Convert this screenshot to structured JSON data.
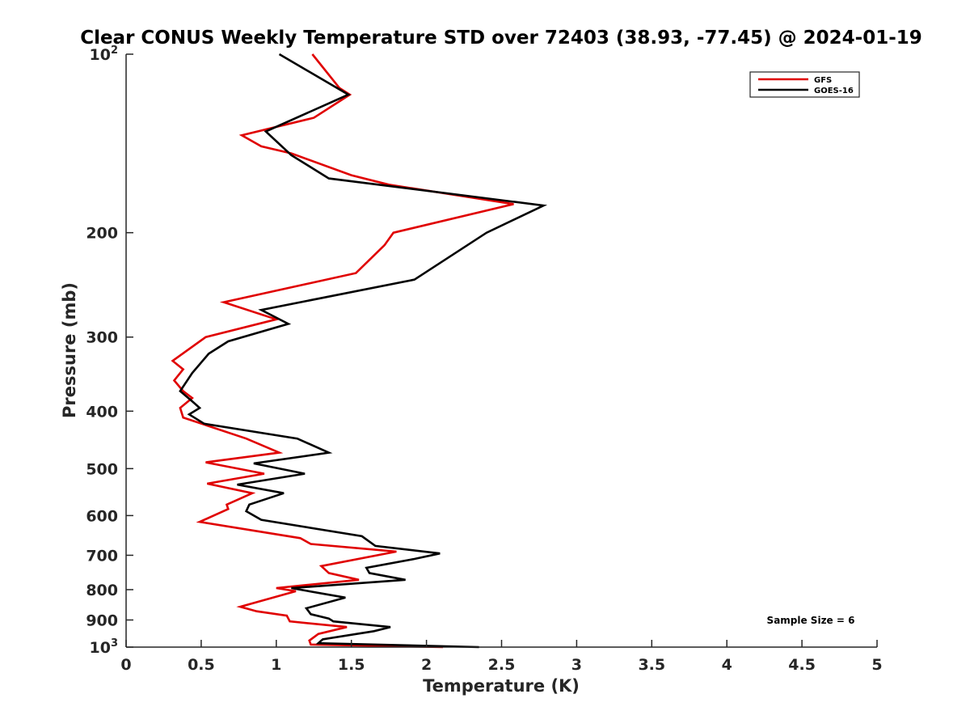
{
  "chart_data": {
    "type": "line",
    "title": "Clear CONUS Weekly Temperature STD over 72403 (38.93, -77.45) @ 2024-01-19",
    "xlabel": "Temperature (K)",
    "ylabel": "Pressure (mb)",
    "xlim": [
      0,
      5
    ],
    "ylim": [
      100,
      1000
    ],
    "y_scale": "log",
    "y_reversed": true,
    "x_ticks": [
      "0",
      "0.5",
      "1",
      "1.5",
      "2",
      "2.5",
      "3",
      "3.5",
      "4",
      "4.5",
      "5"
    ],
    "y_ticks": [
      {
        "value": 100,
        "label": "10",
        "sup": "2"
      },
      {
        "value": 200,
        "label": "200",
        "sup": ""
      },
      {
        "value": 300,
        "label": "300",
        "sup": ""
      },
      {
        "value": 400,
        "label": "400",
        "sup": ""
      },
      {
        "value": 500,
        "label": "500",
        "sup": ""
      },
      {
        "value": 600,
        "label": "600",
        "sup": ""
      },
      {
        "value": 700,
        "label": "700",
        "sup": ""
      },
      {
        "value": 800,
        "label": "800",
        "sup": ""
      },
      {
        "value": 900,
        "label": "900",
        "sup": ""
      },
      {
        "value": 1000,
        "label": "10",
        "sup": "3"
      }
    ],
    "grid": false,
    "legend_position": "top-right",
    "annotation": "Sample Size = 6",
    "series": [
      {
        "name": "GFS",
        "color": "#e00000",
        "points": [
          [
            1.24,
            100
          ],
          [
            1.42,
            114
          ],
          [
            1.49,
            117
          ],
          [
            1.25,
            128
          ],
          [
            0.77,
            137
          ],
          [
            0.9,
            143
          ],
          [
            1.1,
            147
          ],
          [
            1.5,
            160
          ],
          [
            1.75,
            166
          ],
          [
            2.58,
            179
          ],
          [
            1.78,
            200
          ],
          [
            1.72,
            210
          ],
          [
            1.53,
            234
          ],
          [
            0.65,
            262
          ],
          [
            1.0,
            280
          ],
          [
            0.53,
            300
          ],
          [
            0.31,
            329
          ],
          [
            0.38,
            340
          ],
          [
            0.32,
            355
          ],
          [
            0.38,
            370
          ],
          [
            0.44,
            380
          ],
          [
            0.36,
            395
          ],
          [
            0.38,
            410
          ],
          [
            0.8,
            445
          ],
          [
            1.02,
            470
          ],
          [
            0.53,
            488
          ],
          [
            0.92,
            510
          ],
          [
            0.54,
            530
          ],
          [
            0.84,
            550
          ],
          [
            0.67,
            575
          ],
          [
            0.68,
            585
          ],
          [
            0.49,
            615
          ],
          [
            1.16,
            655
          ],
          [
            1.23,
            670
          ],
          [
            1.8,
            690
          ],
          [
            1.3,
            730
          ],
          [
            1.35,
            750
          ],
          [
            1.55,
            770
          ],
          [
            1.0,
            795
          ],
          [
            1.13,
            805
          ],
          [
            0.76,
            855
          ],
          [
            0.87,
            870
          ],
          [
            1.07,
            885
          ],
          [
            1.09,
            905
          ],
          [
            1.47,
            925
          ],
          [
            1.28,
            950
          ],
          [
            1.22,
            975
          ],
          [
            1.23,
            990
          ],
          [
            2.11,
            1000
          ]
        ]
      },
      {
        "name": "GOES-16",
        "color": "#000000",
        "points": [
          [
            1.02,
            100
          ],
          [
            1.48,
            117
          ],
          [
            0.93,
            135
          ],
          [
            1.1,
            148
          ],
          [
            1.35,
            162
          ],
          [
            2.78,
            180
          ],
          [
            2.4,
            200
          ],
          [
            1.92,
            240
          ],
          [
            0.9,
            270
          ],
          [
            1.08,
            285
          ],
          [
            0.68,
            305
          ],
          [
            0.55,
            320
          ],
          [
            0.44,
            345
          ],
          [
            0.36,
            370
          ],
          [
            0.44,
            385
          ],
          [
            0.49,
            395
          ],
          [
            0.42,
            405
          ],
          [
            0.52,
            420
          ],
          [
            1.14,
            445
          ],
          [
            1.35,
            470
          ],
          [
            0.85,
            490
          ],
          [
            1.19,
            510
          ],
          [
            0.74,
            532
          ],
          [
            1.05,
            550
          ],
          [
            0.82,
            575
          ],
          [
            0.8,
            590
          ],
          [
            0.9,
            610
          ],
          [
            1.57,
            650
          ],
          [
            1.66,
            675
          ],
          [
            2.09,
            695
          ],
          [
            1.92,
            710
          ],
          [
            1.6,
            735
          ],
          [
            1.62,
            750
          ],
          [
            1.86,
            770
          ],
          [
            1.1,
            795
          ],
          [
            1.46,
            825
          ],
          [
            1.2,
            860
          ],
          [
            1.23,
            880
          ],
          [
            1.35,
            895
          ],
          [
            1.38,
            905
          ],
          [
            1.76,
            925
          ],
          [
            1.65,
            940
          ],
          [
            1.31,
            970
          ],
          [
            1.28,
            985
          ],
          [
            2.35,
            1000
          ]
        ]
      }
    ]
  }
}
